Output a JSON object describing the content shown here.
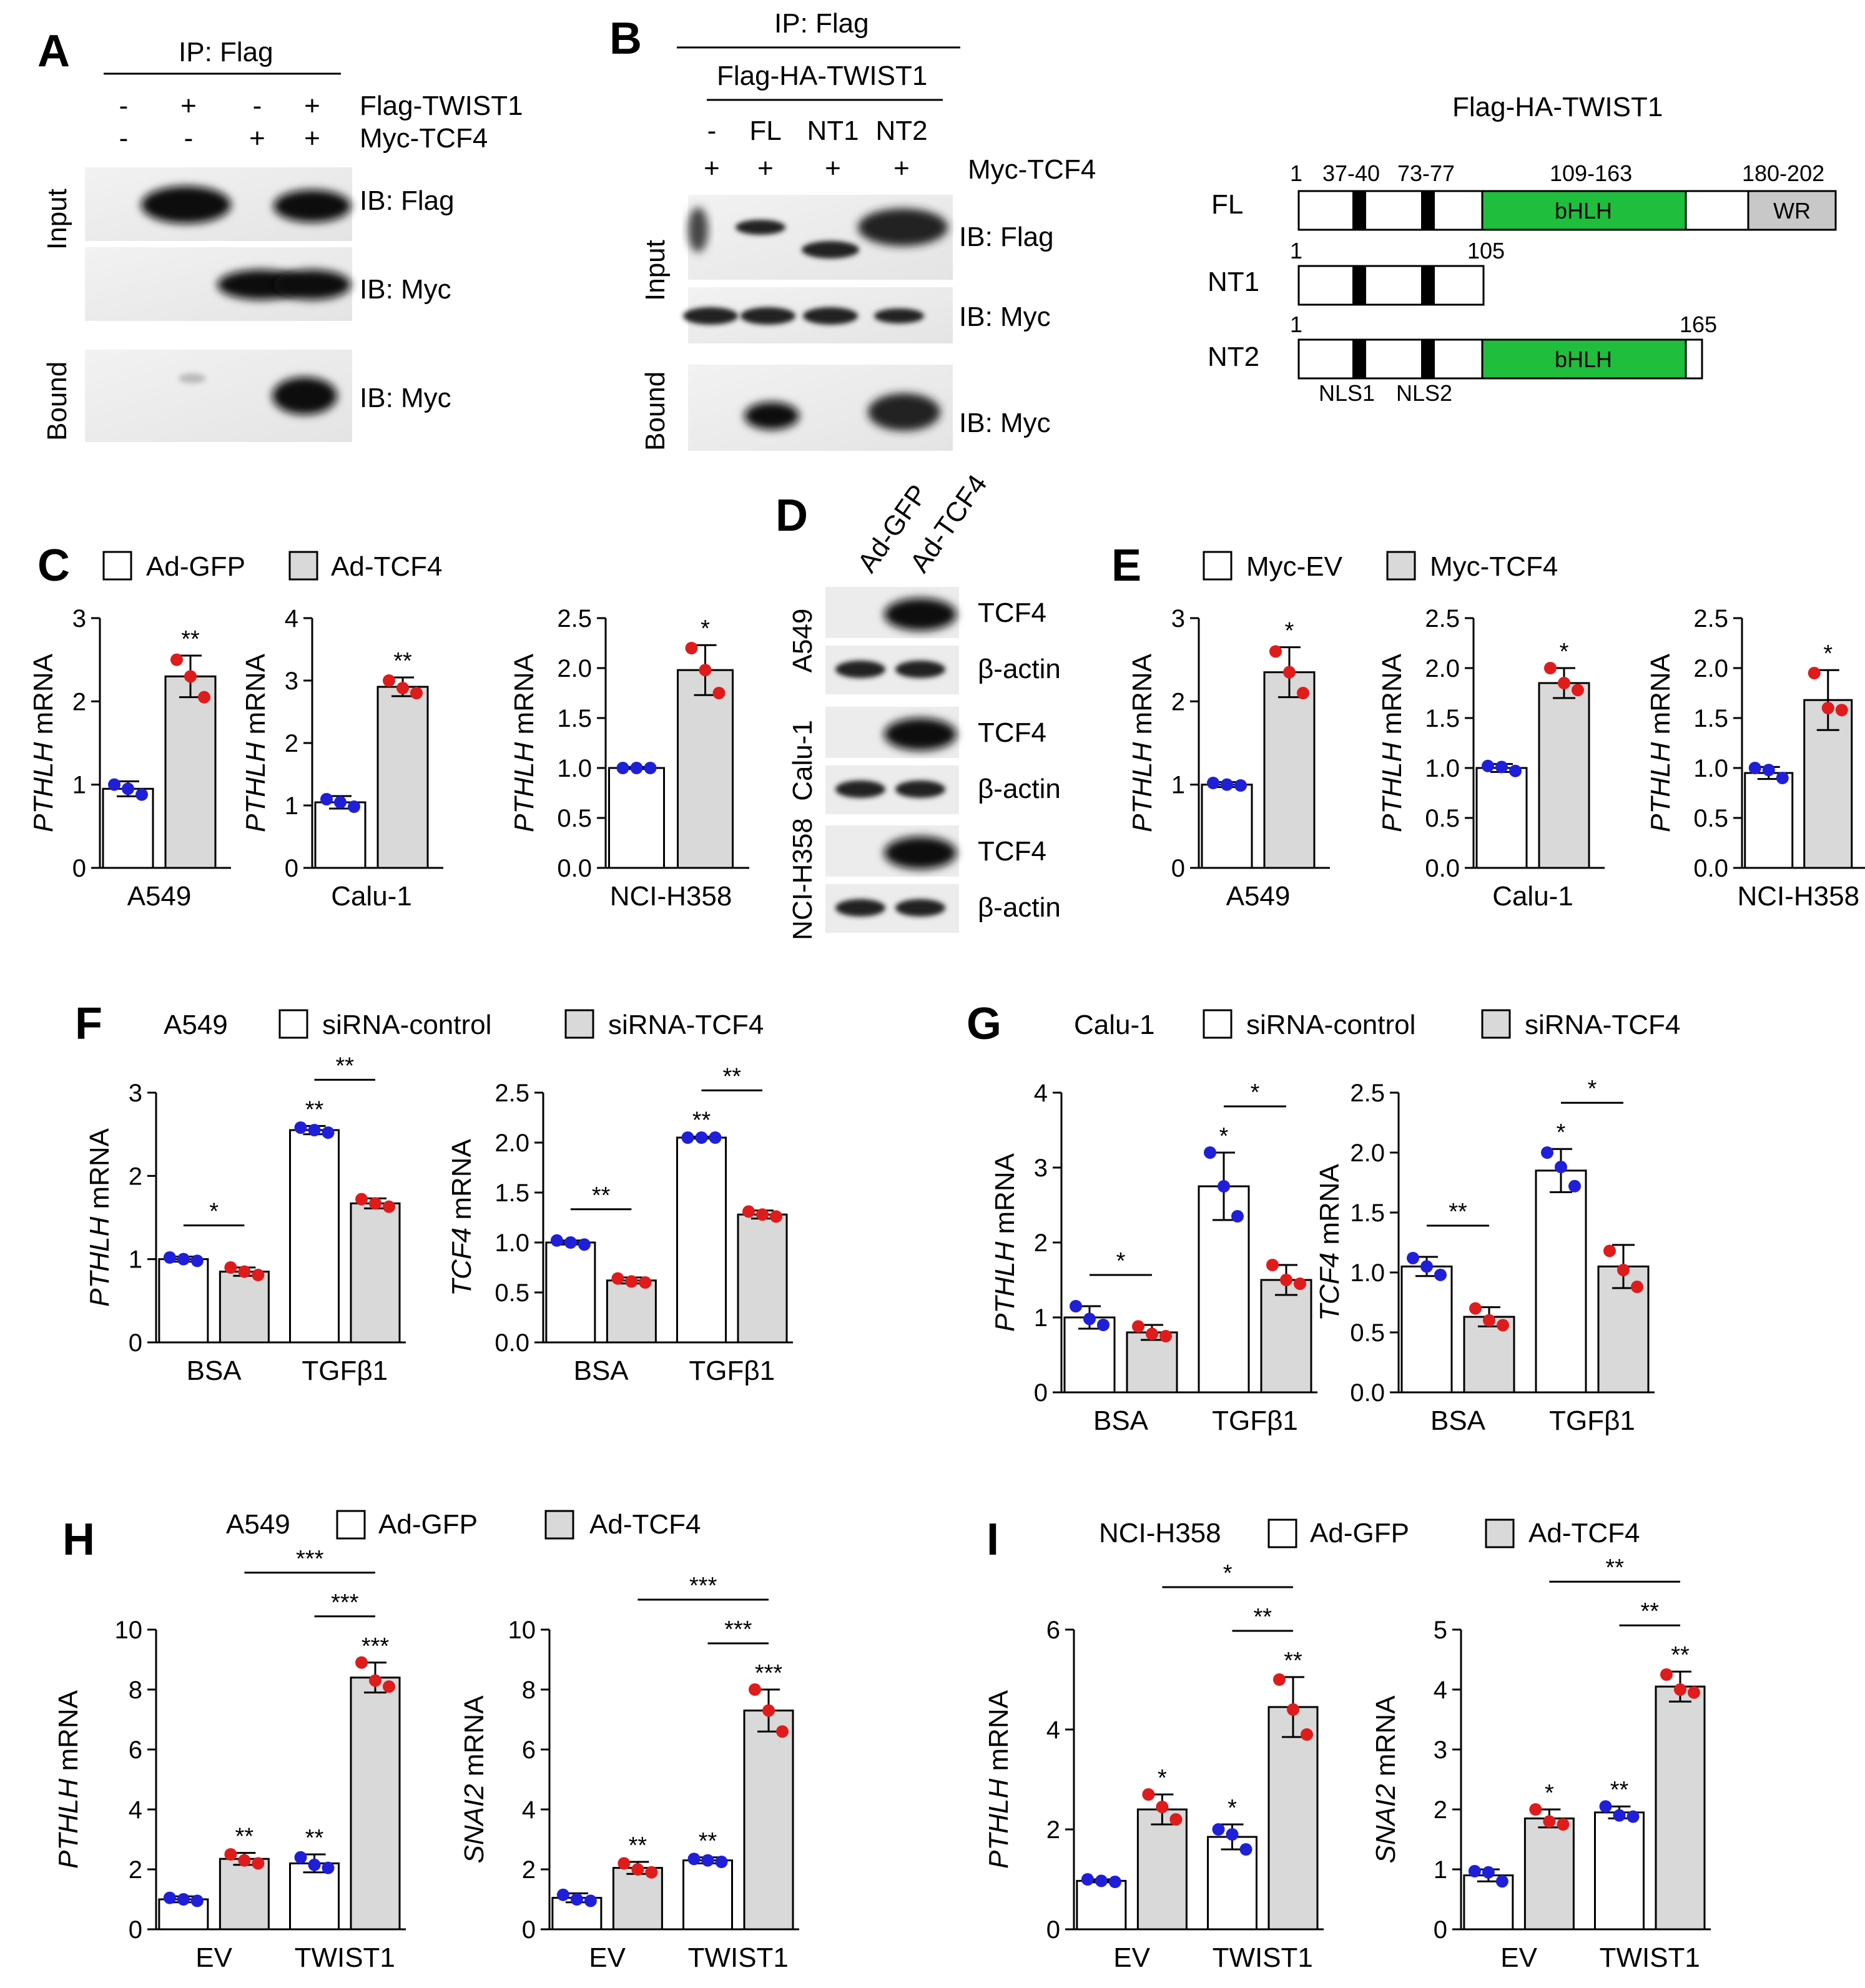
{
  "colors": {
    "white_bar": "#ffffff",
    "gray_bar": "#d9d9d9",
    "blue_dot": "#1f1fd9",
    "red_dot": "#e01b1b",
    "bhlh": "#1fbe3c",
    "wr": "#c8c8c8"
  },
  "panels": {
    "A": {
      "letter": "A",
      "ip": "IP: Flag",
      "row1": "Flag-TWIST1",
      "row2": "Myc-TCF4",
      "signs1": [
        "-",
        "+",
        "-",
        "+"
      ],
      "signs2": [
        "-",
        "-",
        "+",
        "+"
      ],
      "side_input": "Input",
      "side_bound": "Bound",
      "ib1": "IB: Flag",
      "ib2": "IB: Myc",
      "ib3": "IB: Myc"
    },
    "B": {
      "letter": "B",
      "ip": "IP: Flag",
      "construct": "Flag-HA-TWIST1",
      "lanes": [
        "-",
        "FL",
        "NT1",
        "NT2"
      ],
      "row2": "Myc-TCF4",
      "signs2": [
        "+",
        "+",
        "+",
        "+"
      ],
      "side_input": "Input",
      "side_bound": "Bound",
      "ib1": "IB: Flag",
      "ib2": "IB: Myc",
      "ib3": "IB: Myc"
    },
    "domain": {
      "title": "Flag-HA-TWIST1",
      "fl": "FL",
      "nt1": "NT1",
      "nt2": "NT2",
      "p1": "1",
      "p2": "37-40",
      "p3": "73-77",
      "p4": "109-163",
      "p5": "180-202",
      "nt1_start": "1",
      "nt1_end": "105",
      "nt2_start": "1",
      "nt2_end": "165",
      "bhlh": "bHLH",
      "wr": "WR",
      "nls1": "NLS1",
      "nls2": "NLS2"
    },
    "C": {
      "letter": "C",
      "legend1": "Ad-GFP",
      "legend2": "Ad-TCF4"
    },
    "D": {
      "letter": "D",
      "lane1": "Ad-GFP",
      "lane2": "Ad-TCF4",
      "cells": [
        "A549",
        "Calu-1",
        "NCI-H358"
      ],
      "tcf4": "TCF4",
      "actin": "β-actin"
    },
    "E": {
      "letter": "E",
      "legend1": "Myc-EV",
      "legend2": "Myc-TCF4"
    },
    "F": {
      "letter": "F",
      "cell": "A549",
      "legend1": "siRNA-control",
      "legend2": "siRNA-TCF4"
    },
    "G": {
      "letter": "G",
      "cell": "Calu-1",
      "legend1": "siRNA-control",
      "legend2": "siRNA-TCF4"
    },
    "H": {
      "letter": "H",
      "cell": "A549",
      "legend1": "Ad-GFP",
      "legend2": "Ad-TCF4"
    },
    "I": {
      "letter": "I",
      "cell": "NCI-H358",
      "legend1": "Ad-GFP",
      "legend2": "Ad-TCF4"
    }
  },
  "chart_data": [
    {
      "id": "C1",
      "type": "bar",
      "ylabel_gene": "PTHLH",
      "ylabel_suffix": " mRNA",
      "ylim": [
        0,
        3
      ],
      "ticks": [
        "0",
        "1",
        "2",
        "3"
      ],
      "categories": [
        "A549"
      ],
      "series": [
        {
          "name": "Ad-GFP",
          "values": [
            0.95
          ],
          "err": [
            0.09
          ],
          "dots": [
            [
              1.0,
              0.95,
              0.88
            ]
          ]
        },
        {
          "name": "Ad-TCF4",
          "values": [
            2.3
          ],
          "err": [
            0.25
          ],
          "dots": [
            [
              2.5,
              2.3,
              2.05
            ]
          ]
        }
      ],
      "stars": [
        {
          "bar": 1,
          "text": "**"
        }
      ]
    },
    {
      "id": "C2",
      "type": "bar",
      "ylabel_gene": "PTHLH",
      "ylabel_suffix": " mRNA",
      "ylim": [
        0,
        4
      ],
      "ticks": [
        "0",
        "1",
        "2",
        "3",
        "4"
      ],
      "categories": [
        "Calu-1"
      ],
      "series": [
        {
          "name": "Ad-GFP",
          "values": [
            1.05
          ],
          "err": [
            0.1
          ],
          "dots": [
            [
              1.1,
              1.05,
              0.98
            ]
          ]
        },
        {
          "name": "Ad-TCF4",
          "values": [
            2.9
          ],
          "err": [
            0.15
          ],
          "dots": [
            [
              3.0,
              2.88,
              2.8
            ]
          ]
        }
      ],
      "stars": [
        {
          "bar": 1,
          "text": "**"
        }
      ]
    },
    {
      "id": "C3",
      "type": "bar",
      "ylabel_gene": "PTHLH",
      "ylabel_suffix": " mRNA",
      "ylim": [
        0,
        2.5
      ],
      "ticks": [
        "0.0",
        "0.5",
        "1.0",
        "1.5",
        "2.0",
        "2.5"
      ],
      "categories": [
        "NCI-H358"
      ],
      "series": [
        {
          "name": "Ad-GFP",
          "values": [
            1.0
          ],
          "err": [
            0.01
          ],
          "dots": [
            [
              1.0,
              1.0,
              1.0
            ]
          ]
        },
        {
          "name": "Ad-TCF4",
          "values": [
            1.98
          ],
          "err": [
            0.25
          ],
          "dots": [
            [
              2.2,
              1.98,
              1.75
            ]
          ]
        }
      ],
      "stars": [
        {
          "bar": 1,
          "text": "*"
        }
      ]
    },
    {
      "id": "E1",
      "type": "bar",
      "ylabel_gene": "PTHLH",
      "ylabel_suffix": " mRNA",
      "ylim": [
        0,
        3
      ],
      "ticks": [
        "0",
        "1",
        "2",
        "3"
      ],
      "categories": [
        "A549"
      ],
      "series": [
        {
          "name": "Myc-EV",
          "values": [
            1.0
          ],
          "err": [
            0.03
          ],
          "dots": [
            [
              1.02,
              1.0,
              0.99
            ]
          ]
        },
        {
          "name": "Myc-TCF4",
          "values": [
            2.35
          ],
          "err": [
            0.3
          ],
          "dots": [
            [
              2.6,
              2.35,
              2.1
            ]
          ]
        }
      ],
      "stars": [
        {
          "bar": 1,
          "text": "*"
        }
      ]
    },
    {
      "id": "E2",
      "type": "bar",
      "ylabel_gene": "PTHLH",
      "ylabel_suffix": " mRNA",
      "ylim": [
        0,
        2.5
      ],
      "ticks": [
        "0.0",
        "0.5",
        "1.0",
        "1.5",
        "2.0",
        "2.5"
      ],
      "categories": [
        "Calu-1"
      ],
      "series": [
        {
          "name": "Myc-EV",
          "values": [
            1.0
          ],
          "err": [
            0.04
          ],
          "dots": [
            [
              1.02,
              1.01,
              0.97
            ]
          ]
        },
        {
          "name": "Myc-TCF4",
          "values": [
            1.85
          ],
          "err": [
            0.15
          ],
          "dots": [
            [
              2.0,
              1.85,
              1.78
            ]
          ]
        }
      ],
      "stars": [
        {
          "bar": 1,
          "text": "*"
        }
      ]
    },
    {
      "id": "E3",
      "type": "bar",
      "ylabel_gene": "PTHLH",
      "ylabel_suffix": " mRNA",
      "ylim": [
        0,
        2.5
      ],
      "ticks": [
        "0.0",
        "0.5",
        "1.0",
        "1.5",
        "2.0",
        "2.5"
      ],
      "categories": [
        "NCI-H358"
      ],
      "series": [
        {
          "name": "Myc-EV",
          "values": [
            0.95
          ],
          "err": [
            0.06
          ],
          "dots": [
            [
              1.0,
              0.98,
              0.9
            ]
          ]
        },
        {
          "name": "Myc-TCF4",
          "values": [
            1.68
          ],
          "err": [
            0.3
          ],
          "dots": [
            [
              1.95,
              1.6,
              1.58
            ]
          ]
        }
      ],
      "stars": [
        {
          "bar": 1,
          "text": "*"
        }
      ]
    },
    {
      "id": "F1",
      "type": "bar",
      "ylabel_gene": "PTHLH",
      "ylabel_suffix": " mRNA",
      "ylim": [
        0,
        3
      ],
      "ticks": [
        "0",
        "1",
        "2",
        "3"
      ],
      "categories": [
        "BSA",
        "TGFβ1"
      ],
      "series": [
        {
          "name": "siRNA-control",
          "values": [
            1.0,
            2.55
          ],
          "err": [
            0.03,
            0.05
          ],
          "dots": [
            [
              1.02,
              1.0,
              0.98
            ],
            [
              2.58,
              2.55,
              2.52
            ]
          ]
        },
        {
          "name": "siRNA-TCF4",
          "values": [
            0.85,
            1.67
          ],
          "err": [
            0.05,
            0.06
          ],
          "dots": [
            [
              0.9,
              0.85,
              0.81
            ],
            [
              1.72,
              1.67,
              1.63
            ]
          ]
        }
      ],
      "stars": [
        {
          "bar": 2,
          "text": "**"
        }
      ],
      "brackets": [
        {
          "from": 0,
          "to": 1,
          "text": "*"
        },
        {
          "from": 2,
          "to": 3,
          "text": "**"
        }
      ]
    },
    {
      "id": "F2",
      "type": "bar",
      "ylabel_gene": "TCF4",
      "ylabel_suffix": " mRNA",
      "ylim": [
        0,
        2.5
      ],
      "ticks": [
        "0.0",
        "0.5",
        "1.0",
        "1.5",
        "2.0",
        "2.5"
      ],
      "categories": [
        "BSA",
        "TGFβ1"
      ],
      "series": [
        {
          "name": "siRNA-control",
          "values": [
            1.0,
            2.05
          ],
          "err": [
            0.02,
            0.01
          ],
          "dots": [
            [
              1.02,
              1.0,
              0.98
            ],
            [
              2.05,
              2.05,
              2.05
            ]
          ]
        },
        {
          "name": "siRNA-TCF4",
          "values": [
            0.62,
            1.28
          ],
          "err": [
            0.03,
            0.04
          ],
          "dots": [
            [
              0.64,
              0.61,
              0.6
            ],
            [
              1.31,
              1.28,
              1.26
            ]
          ]
        }
      ],
      "stars": [
        {
          "bar": 2,
          "text": "**"
        }
      ],
      "brackets": [
        {
          "from": 0,
          "to": 1,
          "text": "**"
        },
        {
          "from": 2,
          "to": 3,
          "text": "**"
        }
      ]
    },
    {
      "id": "G1",
      "type": "bar",
      "ylabel_gene": "PTHLH",
      "ylabel_suffix": " mRNA",
      "ylim": [
        0,
        4
      ],
      "ticks": [
        "0",
        "1",
        "2",
        "3",
        "4"
      ],
      "categories": [
        "BSA",
        "TGFβ1"
      ],
      "series": [
        {
          "name": "siRNA-control",
          "values": [
            1.0,
            2.75
          ],
          "err": [
            0.15,
            0.45
          ],
          "dots": [
            [
              1.15,
              0.98,
              0.9
            ],
            [
              3.2,
              2.75,
              2.35
            ]
          ]
        },
        {
          "name": "siRNA-TCF4",
          "values": [
            0.8,
            1.5
          ],
          "err": [
            0.1,
            0.2
          ],
          "dots": [
            [
              0.88,
              0.78,
              0.75
            ],
            [
              1.7,
              1.5,
              1.45
            ]
          ]
        }
      ],
      "stars": [
        {
          "bar": 2,
          "text": "*"
        }
      ],
      "brackets": [
        {
          "from": 0,
          "to": 1,
          "text": "*"
        },
        {
          "from": 2,
          "to": 3,
          "text": "*"
        }
      ]
    },
    {
      "id": "G2",
      "type": "bar",
      "ylabel_gene": "TCF4",
      "ylabel_suffix": " mRNA",
      "ylim": [
        0,
        2.5
      ],
      "ticks": [
        "0.0",
        "0.5",
        "1.0",
        "1.5",
        "2.0",
        "2.5"
      ],
      "categories": [
        "BSA",
        "TGFβ1"
      ],
      "series": [
        {
          "name": "siRNA-control",
          "values": [
            1.05,
            1.85
          ],
          "err": [
            0.08,
            0.18
          ],
          "dots": [
            [
              1.12,
              1.05,
              0.98
            ],
            [
              2.0,
              1.88,
              1.72
            ]
          ]
        },
        {
          "name": "siRNA-TCF4",
          "values": [
            0.63,
            1.05
          ],
          "err": [
            0.08,
            0.18
          ],
          "dots": [
            [
              0.7,
              0.6,
              0.56
            ],
            [
              1.18,
              1.02,
              0.88
            ]
          ]
        }
      ],
      "stars": [
        {
          "bar": 2,
          "text": "*"
        }
      ],
      "brackets": [
        {
          "from": 0,
          "to": 1,
          "text": "**"
        },
        {
          "from": 2,
          "to": 3,
          "text": "*"
        }
      ]
    },
    {
      "id": "H1",
      "type": "bar",
      "ylabel_gene": "PTHLH",
      "ylabel_suffix": " mRNA",
      "ylim": [
        0,
        10
      ],
      "ticks": [
        "0",
        "2",
        "4",
        "6",
        "8",
        "10"
      ],
      "categories": [
        "EV",
        "TWIST1"
      ],
      "series": [
        {
          "name": "Ad-GFP",
          "values": [
            1.0,
            2.2
          ],
          "err": [
            0.1,
            0.3
          ],
          "dots": [
            [
              1.05,
              1.0,
              0.95
            ],
            [
              2.4,
              2.15,
              2.05
            ]
          ]
        },
        {
          "name": "Ad-TCF4",
          "values": [
            2.35,
            8.4
          ],
          "err": [
            0.2,
            0.5
          ],
          "dots": [
            [
              2.5,
              2.3,
              2.2
            ],
            [
              8.9,
              8.3,
              8.1
            ]
          ]
        }
      ],
      "stars": [
        {
          "bar": 1,
          "text": "**"
        },
        {
          "bar": 2,
          "text": "**"
        },
        {
          "bar": 3,
          "text": "***"
        }
      ],
      "brackets": [
        {
          "from": 2,
          "to": 3,
          "text": "***"
        },
        {
          "from": 1,
          "to": 3,
          "text": "***"
        }
      ]
    },
    {
      "id": "H2",
      "type": "bar",
      "ylabel_gene": "SNAI2",
      "ylabel_suffix": " mRNA",
      "ylim": [
        0,
        10
      ],
      "ticks": [
        "0",
        "2",
        "4",
        "6",
        "8",
        "10"
      ],
      "categories": [
        "EV",
        "TWIST1"
      ],
      "series": [
        {
          "name": "Ad-GFP",
          "values": [
            1.05,
            2.3
          ],
          "err": [
            0.15,
            0.1
          ],
          "dots": [
            [
              1.15,
              1.0,
              0.95
            ],
            [
              2.35,
              2.3,
              2.25
            ]
          ]
        },
        {
          "name": "Ad-TCF4",
          "values": [
            2.05,
            7.3
          ],
          "err": [
            0.2,
            0.7
          ],
          "dots": [
            [
              2.2,
              2.0,
              1.9
            ],
            [
              8.0,
              7.3,
              6.6
            ]
          ]
        }
      ],
      "stars": [
        {
          "bar": 1,
          "text": "**"
        },
        {
          "bar": 2,
          "text": "**"
        },
        {
          "bar": 3,
          "text": "***"
        }
      ],
      "brackets": [
        {
          "from": 2,
          "to": 3,
          "text": "***"
        },
        {
          "from": 1,
          "to": 3,
          "text": "***"
        }
      ]
    },
    {
      "id": "I1",
      "type": "bar",
      "ylabel_gene": "PTHLH",
      "ylabel_suffix": " mRNA",
      "ylim": [
        0,
        6
      ],
      "ticks": [
        "0",
        "2",
        "4",
        "6"
      ],
      "categories": [
        "EV",
        "TWIST1"
      ],
      "series": [
        {
          "name": "Ad-GFP",
          "values": [
            0.97,
            1.85
          ],
          "err": [
            0.03,
            0.25
          ],
          "dots": [
            [
              1.0,
              0.97,
              0.95
            ],
            [
              2.0,
              1.9,
              1.6
            ]
          ]
        },
        {
          "name": "Ad-TCF4",
          "values": [
            2.4,
            4.45
          ],
          "err": [
            0.3,
            0.6
          ],
          "dots": [
            [
              2.7,
              2.45,
              2.2
            ],
            [
              5.0,
              4.4,
              3.9
            ]
          ]
        }
      ],
      "stars": [
        {
          "bar": 1,
          "text": "*"
        },
        {
          "bar": 2,
          "text": "*"
        },
        {
          "bar": 3,
          "text": "**"
        }
      ],
      "brackets": [
        {
          "from": 2,
          "to": 3,
          "text": "**"
        },
        {
          "from": 1,
          "to": 3,
          "text": "*"
        }
      ]
    },
    {
      "id": "I2",
      "type": "bar",
      "ylabel_gene": "SNAI2",
      "ylabel_suffix": " mRNA",
      "ylim": [
        0,
        5
      ],
      "ticks": [
        "0",
        "1",
        "2",
        "3",
        "4",
        "5"
      ],
      "categories": [
        "EV",
        "TWIST1"
      ],
      "series": [
        {
          "name": "Ad-GFP",
          "values": [
            0.9,
            1.95
          ],
          "err": [
            0.1,
            0.1
          ],
          "dots": [
            [
              0.97,
              0.95,
              0.8
            ],
            [
              2.05,
              1.9,
              1.88
            ]
          ]
        },
        {
          "name": "Ad-TCF4",
          "values": [
            1.85,
            4.05
          ],
          "err": [
            0.15,
            0.25
          ],
          "dots": [
            [
              2.0,
              1.8,
              1.75
            ],
            [
              4.25,
              4.0,
              3.95
            ]
          ]
        }
      ],
      "stars": [
        {
          "bar": 1,
          "text": "*"
        },
        {
          "bar": 2,
          "text": "**"
        },
        {
          "bar": 3,
          "text": "**"
        }
      ],
      "brackets": [
        {
          "from": 2,
          "to": 3,
          "text": "**"
        },
        {
          "from": 1,
          "to": 3,
          "text": "**"
        }
      ]
    }
  ]
}
